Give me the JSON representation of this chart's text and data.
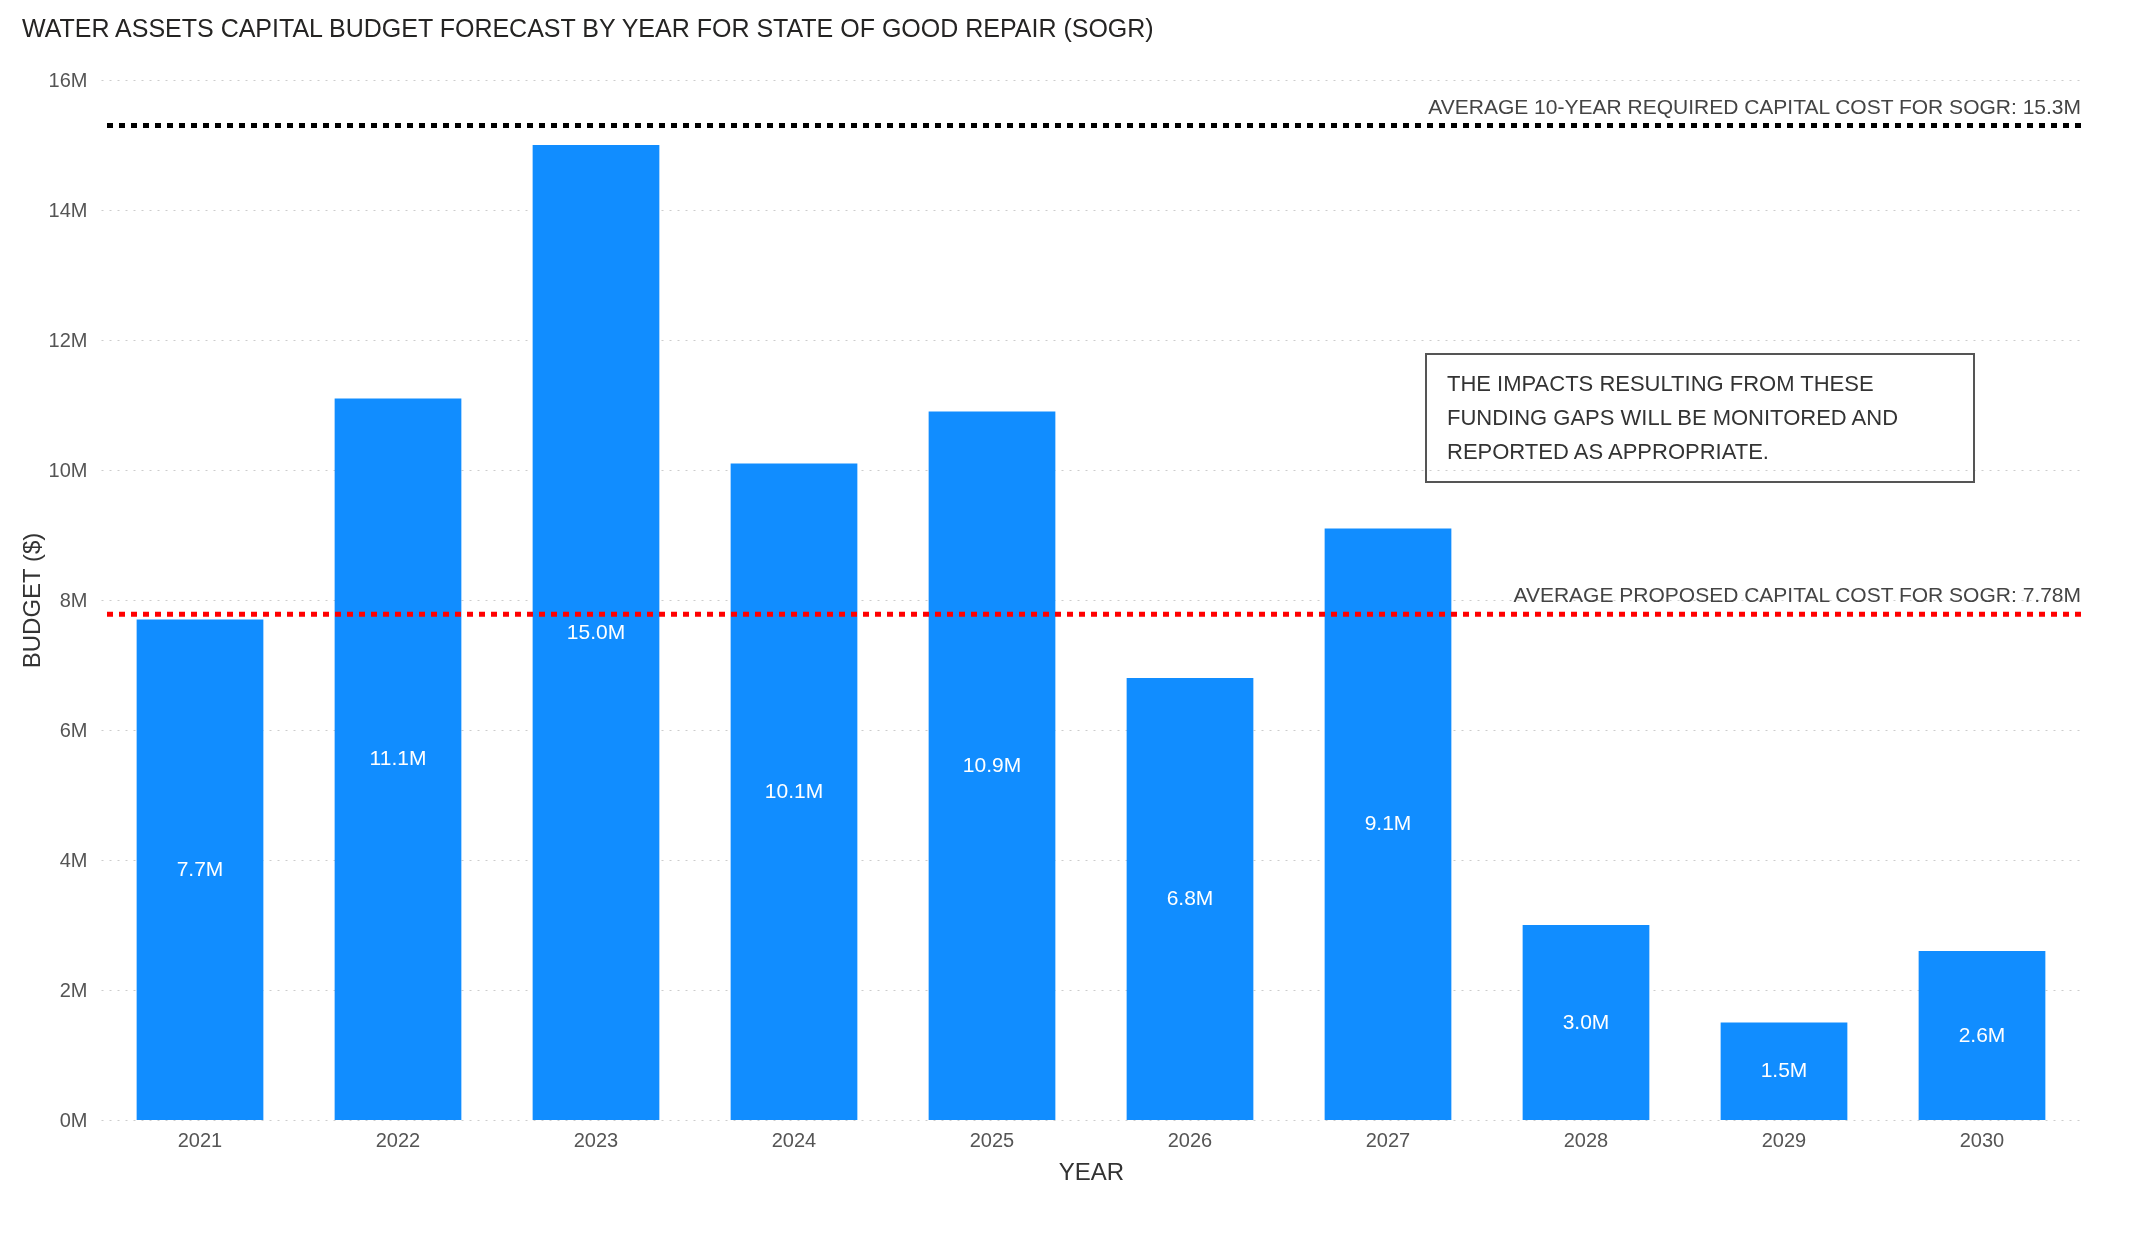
{
  "chart_data": {
    "type": "bar",
    "title": "WATER ASSETS CAPITAL BUDGET FORECAST BY YEAR FOR STATE OF GOOD REPAIR (SOGR)",
    "xlabel": "YEAR",
    "ylabel": "BUDGET ($)",
    "categories": [
      "2021",
      "2022",
      "2023",
      "2024",
      "2025",
      "2026",
      "2027",
      "2028",
      "2029",
      "2030"
    ],
    "values": [
      7.7,
      11.1,
      15.0,
      10.1,
      10.9,
      6.8,
      9.1,
      3.0,
      1.5,
      2.6
    ],
    "value_labels": [
      "7.7M",
      "11.1M",
      "15.0M",
      "10.1M",
      "10.9M",
      "6.8M",
      "9.1M",
      "3.0M",
      "1.5M",
      "2.6M"
    ],
    "color": "#118dff",
    "ylim": [
      0,
      16
    ],
    "yticks": [
      {
        "value": 0,
        "label": "0M"
      },
      {
        "value": 2,
        "label": "2M"
      },
      {
        "value": 4,
        "label": "4M"
      },
      {
        "value": 6,
        "label": "6M"
      },
      {
        "value": 8,
        "label": "8M"
      },
      {
        "value": 10,
        "label": "10M"
      },
      {
        "value": 12,
        "label": "12M"
      },
      {
        "value": 14,
        "label": "14M"
      },
      {
        "value": 16,
        "label": "16M"
      }
    ],
    "grid": "y",
    "ref_lines": [
      {
        "axis": "y",
        "value": 15.3,
        "label": "AVERAGE 10-YEAR REQUIRED CAPITAL COST FOR SOGR: 15.3M",
        "color": "#000000",
        "line_style": "dashed"
      },
      {
        "axis": "y",
        "value": 7.78,
        "label": "AVERAGE PROPOSED CAPITAL COST FOR SOGR: 7.78M",
        "color": "#ff0000",
        "line_style": "dashed"
      }
    ],
    "annotations": [
      "THE IMPACTS RESULTING FROM THESE FUNDING GAPS WILL BE MONITORED AND REPORTED AS APPROPRIATE."
    ]
  }
}
